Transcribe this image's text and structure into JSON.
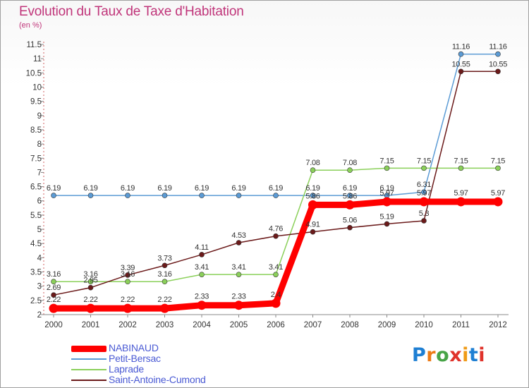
{
  "header": {
    "title": "Evolution du Taux de Taxe d'Habitation",
    "unit": "(en %)"
  },
  "logo": {
    "text": "Proxiti",
    "letters": [
      "P",
      "r",
      "o",
      "x",
      "i",
      "t",
      "i"
    ],
    "colors": [
      "#1e7fd3",
      "#ec7b16",
      "#47a447",
      "#e0332b",
      "#ef9b18",
      "#1e7fd3",
      "#e0332b"
    ]
  },
  "chart_data": {
    "type": "line",
    "title": "Evolution du Taux de Taxe d'Habitation",
    "ylabel": "(en %)",
    "xlabel": "",
    "x": [
      "2000",
      "2001",
      "2002",
      "2003",
      "2004",
      "2005",
      "2006",
      "2007",
      "2008",
      "2009",
      "2010",
      "2011",
      "2012"
    ],
    "ylim": [
      2,
      11.5
    ],
    "yticks": [
      "2",
      "2.5",
      "3",
      "3.5",
      "4",
      "4.5",
      "5",
      "5.5",
      "6",
      "6.5",
      "7",
      "7.5",
      "8",
      "8.5",
      "9",
      "9.5",
      "10",
      "10.5",
      "11",
      "11.5"
    ],
    "grid": false,
    "legend_position": "bottom-left",
    "series": [
      {
        "name": "NABINAUD",
        "color": "#ff0000",
        "values": [
          2.22,
          2.22,
          2.22,
          2.22,
          2.33,
          2.33,
          2.4,
          5.86,
          5.86,
          5.97,
          5.97,
          5.97,
          5.97
        ],
        "labels": [
          "2.22",
          "2.22",
          "2.22",
          "2.22",
          "2.33",
          "2.33",
          "2.4",
          "5.86",
          "5.86",
          "5.97",
          "5.97",
          "5.97",
          "5.97"
        ]
      },
      {
        "name": "Petit-Bersac",
        "color": "#5b9bd5",
        "values": [
          6.19,
          6.19,
          6.19,
          6.19,
          6.19,
          6.19,
          6.19,
          6.19,
          6.19,
          6.19,
          6.31,
          11.16,
          11.16
        ],
        "labels": [
          "6.19",
          "6.19",
          "6.19",
          "6.19",
          "6.19",
          "6.19",
          "6.19",
          "6.19",
          "6.19",
          "6.19",
          "6.31",
          "11.16",
          "11.16"
        ]
      },
      {
        "name": "Laprade",
        "color": "#8bd05a",
        "values": [
          3.16,
          3.16,
          3.16,
          3.16,
          3.41,
          3.41,
          3.41,
          7.08,
          7.08,
          7.15,
          7.15,
          7.15,
          7.15
        ],
        "labels": [
          "3.16",
          "3.16",
          "3.16",
          "3.16",
          "3.41",
          "3.41",
          "3.41",
          "7.08",
          "7.08",
          "7.15",
          "7.15",
          "7.15",
          "7.15"
        ]
      },
      {
        "name": "Saint-Antoine-Cumond",
        "color": "#6b1a1a",
        "values": [
          2.69,
          2.95,
          3.39,
          3.73,
          4.11,
          4.53,
          4.76,
          4.91,
          5.06,
          5.19,
          5.3,
          10.55,
          10.55
        ],
        "labels": [
          "2.69",
          "2.95",
          "3.39",
          "3.73",
          "4.11",
          "4.53",
          "4.76",
          "4.91",
          "5.06",
          "5.19",
          "5.3",
          "10.55",
          "10.55"
        ]
      }
    ]
  }
}
